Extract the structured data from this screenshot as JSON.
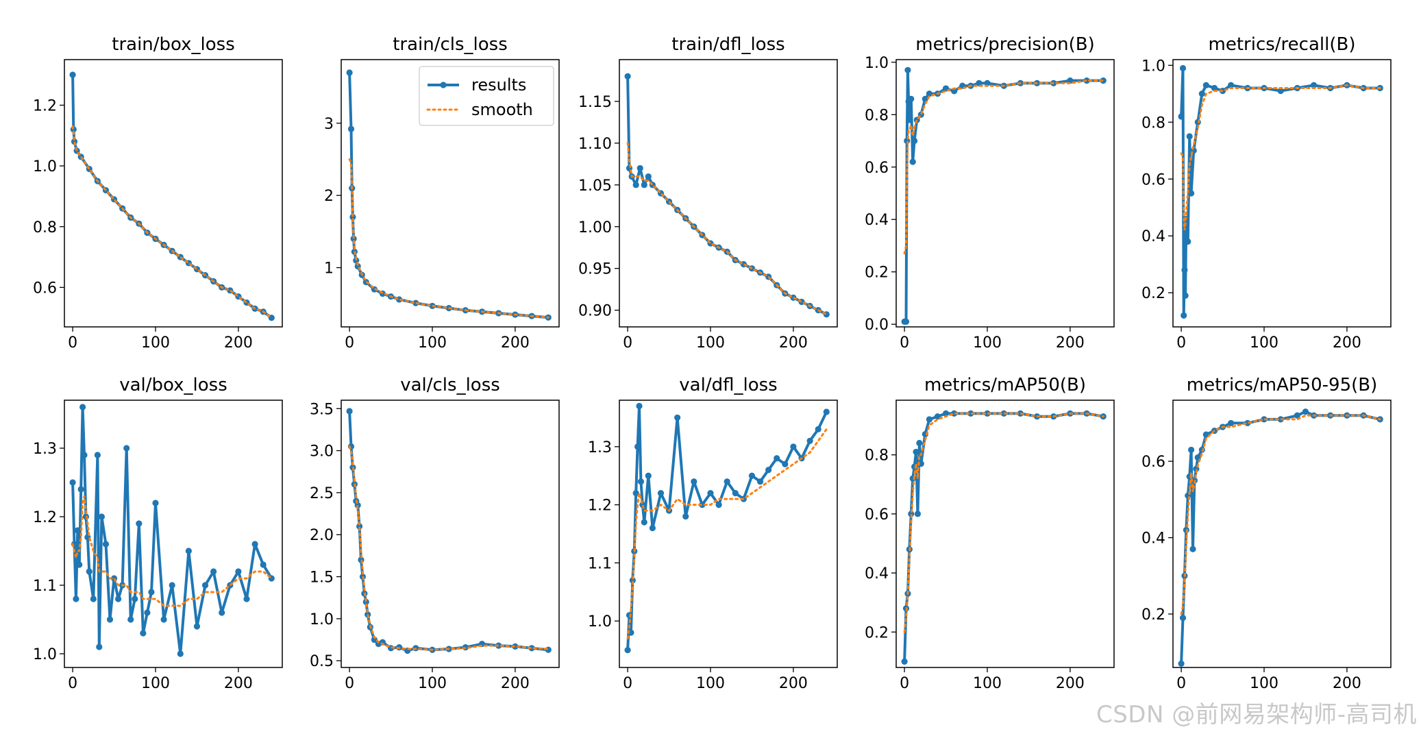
{
  "watermark": "CSDN @前网易架构师-高司机",
  "colors": {
    "results": "#1f77b4",
    "smooth": "#ff7f0e"
  },
  "legend": {
    "results": "results",
    "smooth": "smooth",
    "panel": "train/cls_loss",
    "placement": "upper-right"
  },
  "chart_data": [
    {
      "type": "line",
      "title": "train/box_loss",
      "xlim": [
        -10,
        253
      ],
      "ylim": [
        0.47,
        1.35
      ],
      "xticks": [
        0,
        100,
        200
      ],
      "yticks": [
        0.6,
        0.8,
        1.0,
        1.2
      ],
      "x": [
        0,
        1,
        2,
        5,
        10,
        20,
        30,
        40,
        50,
        60,
        70,
        80,
        90,
        100,
        110,
        120,
        130,
        140,
        150,
        160,
        170,
        180,
        190,
        200,
        210,
        220,
        230,
        240
      ],
      "series": [
        {
          "name": "results",
          "values": [
            1.3,
            1.12,
            1.08,
            1.05,
            1.03,
            0.99,
            0.95,
            0.92,
            0.89,
            0.86,
            0.83,
            0.81,
            0.78,
            0.76,
            0.74,
            0.72,
            0.7,
            0.68,
            0.66,
            0.64,
            0.62,
            0.6,
            0.59,
            0.57,
            0.55,
            0.53,
            0.52,
            0.5
          ]
        },
        {
          "name": "smooth",
          "values": [
            1.13,
            1.11,
            1.08,
            1.05,
            1.03,
            0.99,
            0.95,
            0.92,
            0.89,
            0.86,
            0.83,
            0.81,
            0.78,
            0.76,
            0.74,
            0.72,
            0.7,
            0.68,
            0.66,
            0.64,
            0.62,
            0.6,
            0.59,
            0.57,
            0.55,
            0.53,
            0.52,
            0.5
          ]
        }
      ]
    },
    {
      "type": "line",
      "title": "train/cls_loss",
      "xlim": [
        -10,
        253
      ],
      "ylim": [
        0.18,
        3.88
      ],
      "xticks": [
        0,
        100,
        200
      ],
      "yticks": [
        1,
        2,
        3
      ],
      "x": [
        0,
        2,
        3,
        4,
        5,
        6,
        8,
        10,
        15,
        20,
        30,
        40,
        50,
        60,
        80,
        100,
        120,
        140,
        160,
        180,
        200,
        220,
        240
      ],
      "series": [
        {
          "name": "results",
          "values": [
            3.7,
            2.92,
            2.1,
            1.7,
            1.4,
            1.22,
            1.1,
            1.02,
            0.9,
            0.8,
            0.7,
            0.64,
            0.6,
            0.56,
            0.51,
            0.47,
            0.44,
            0.41,
            0.39,
            0.37,
            0.35,
            0.33,
            0.31
          ]
        },
        {
          "name": "smooth",
          "values": [
            2.5,
            2.45,
            2.1,
            1.72,
            1.43,
            1.25,
            1.12,
            1.04,
            0.91,
            0.81,
            0.71,
            0.65,
            0.6,
            0.56,
            0.51,
            0.47,
            0.44,
            0.41,
            0.39,
            0.37,
            0.35,
            0.33,
            0.31
          ]
        }
      ]
    },
    {
      "type": "line",
      "title": "train/dfl_loss",
      "xlim": [
        -10,
        253
      ],
      "ylim": [
        0.88,
        1.2
      ],
      "xticks": [
        0,
        100,
        200
      ],
      "yticks": [
        0.9,
        0.95,
        1.0,
        1.05,
        1.1,
        1.15
      ],
      "x": [
        0,
        2,
        5,
        10,
        15,
        20,
        25,
        30,
        40,
        50,
        60,
        70,
        80,
        90,
        100,
        110,
        120,
        130,
        140,
        150,
        160,
        170,
        180,
        190,
        200,
        210,
        220,
        230,
        240
      ],
      "series": [
        {
          "name": "results",
          "values": [
            1.18,
            1.07,
            1.06,
            1.05,
            1.07,
            1.05,
            1.06,
            1.05,
            1.04,
            1.03,
            1.02,
            1.01,
            1.0,
            0.99,
            0.98,
            0.975,
            0.97,
            0.96,
            0.955,
            0.95,
            0.945,
            0.94,
            0.93,
            0.92,
            0.915,
            0.91,
            0.905,
            0.9,
            0.895
          ]
        },
        {
          "name": "smooth",
          "values": [
            1.1,
            1.08,
            1.06,
            1.06,
            1.06,
            1.055,
            1.055,
            1.05,
            1.04,
            1.03,
            1.02,
            1.01,
            1.0,
            0.99,
            0.98,
            0.975,
            0.97,
            0.96,
            0.955,
            0.95,
            0.945,
            0.94,
            0.93,
            0.92,
            0.915,
            0.91,
            0.905,
            0.9,
            0.895
          ]
        }
      ]
    },
    {
      "type": "line",
      "title": "metrics/precision(B)",
      "xlim": [
        -10,
        253
      ],
      "ylim": [
        -0.01,
        1.01
      ],
      "xticks": [
        0,
        100,
        200
      ],
      "yticks": [
        0.0,
        0.2,
        0.4,
        0.6,
        0.8,
        1.0
      ],
      "x": [
        0,
        2,
        3,
        4,
        5,
        6,
        8,
        10,
        12,
        15,
        20,
        25,
        30,
        40,
        50,
        60,
        70,
        80,
        90,
        100,
        120,
        140,
        160,
        180,
        200,
        220,
        240
      ],
      "series": [
        {
          "name": "results",
          "values": [
            0.01,
            0.01,
            0.7,
            0.97,
            0.85,
            0.78,
            0.86,
            0.62,
            0.7,
            0.78,
            0.8,
            0.86,
            0.88,
            0.88,
            0.9,
            0.89,
            0.91,
            0.91,
            0.92,
            0.92,
            0.91,
            0.92,
            0.92,
            0.92,
            0.93,
            0.93,
            0.93
          ]
        },
        {
          "name": "smooth",
          "values": [
            0.27,
            0.3,
            0.55,
            0.7,
            0.74,
            0.74,
            0.76,
            0.72,
            0.75,
            0.78,
            0.8,
            0.84,
            0.87,
            0.88,
            0.89,
            0.9,
            0.9,
            0.91,
            0.91,
            0.91,
            0.91,
            0.92,
            0.92,
            0.92,
            0.92,
            0.93,
            0.93
          ]
        }
      ]
    },
    {
      "type": "line",
      "title": "metrics/recall(B)",
      "xlim": [
        -10,
        253
      ],
      "ylim": [
        0.08,
        1.02
      ],
      "xticks": [
        0,
        100,
        200
      ],
      "yticks": [
        0.2,
        0.4,
        0.6,
        0.8,
        1.0
      ],
      "x": [
        0,
        2,
        3,
        4,
        5,
        6,
        8,
        10,
        12,
        15,
        20,
        25,
        30,
        40,
        50,
        60,
        80,
        100,
        120,
        140,
        160,
        180,
        200,
        220,
        240
      ],
      "series": [
        {
          "name": "results",
          "values": [
            0.82,
            0.99,
            0.12,
            0.28,
            0.19,
            0.46,
            0.38,
            0.75,
            0.55,
            0.7,
            0.8,
            0.9,
            0.93,
            0.92,
            0.91,
            0.93,
            0.92,
            0.92,
            0.91,
            0.92,
            0.93,
            0.92,
            0.93,
            0.92,
            0.92
          ]
        },
        {
          "name": "smooth",
          "values": [
            0.69,
            0.68,
            0.48,
            0.42,
            0.44,
            0.48,
            0.55,
            0.65,
            0.68,
            0.72,
            0.78,
            0.86,
            0.9,
            0.91,
            0.91,
            0.92,
            0.92,
            0.92,
            0.92,
            0.92,
            0.92,
            0.92,
            0.93,
            0.92,
            0.92
          ]
        }
      ]
    },
    {
      "type": "line",
      "title": "val/box_loss",
      "xlim": [
        -10,
        253
      ],
      "ylim": [
        0.98,
        1.37
      ],
      "xticks": [
        0,
        100,
        200
      ],
      "yticks": [
        1.0,
        1.1,
        1.2,
        1.3
      ],
      "x": [
        0,
        2,
        4,
        6,
        8,
        10,
        12,
        14,
        16,
        18,
        20,
        25,
        30,
        32,
        35,
        40,
        45,
        50,
        55,
        60,
        65,
        70,
        75,
        80,
        85,
        90,
        95,
        100,
        110,
        120,
        130,
        140,
        150,
        160,
        170,
        180,
        190,
        200,
        210,
        220,
        230,
        240
      ],
      "series": [
        {
          "name": "results",
          "values": [
            1.25,
            1.16,
            1.08,
            1.18,
            1.13,
            1.24,
            1.36,
            1.29,
            1.2,
            1.17,
            1.12,
            1.08,
            1.29,
            1.01,
            1.2,
            1.16,
            1.05,
            1.11,
            1.08,
            1.1,
            1.3,
            1.05,
            1.08,
            1.19,
            1.03,
            1.06,
            1.09,
            1.22,
            1.05,
            1.1,
            1.0,
            1.15,
            1.04,
            1.1,
            1.12,
            1.06,
            1.1,
            1.12,
            1.08,
            1.16,
            1.13,
            1.11
          ]
        },
        {
          "name": "smooth",
          "values": [
            1.16,
            1.15,
            1.14,
            1.15,
            1.15,
            1.17,
            1.22,
            1.23,
            1.21,
            1.19,
            1.17,
            1.15,
            1.14,
            1.12,
            1.12,
            1.12,
            1.11,
            1.11,
            1.1,
            1.1,
            1.1,
            1.09,
            1.09,
            1.09,
            1.08,
            1.08,
            1.08,
            1.08,
            1.07,
            1.07,
            1.07,
            1.08,
            1.08,
            1.09,
            1.09,
            1.09,
            1.1,
            1.11,
            1.11,
            1.12,
            1.12,
            1.11
          ]
        }
      ]
    },
    {
      "type": "line",
      "title": "val/cls_loss",
      "xlim": [
        -10,
        253
      ],
      "ylim": [
        0.42,
        3.6
      ],
      "xticks": [
        0,
        100,
        200
      ],
      "yticks": [
        0.5,
        1.0,
        1.5,
        2.0,
        2.5,
        3.0,
        3.5
      ],
      "x": [
        0,
        2,
        4,
        6,
        8,
        10,
        12,
        14,
        16,
        18,
        20,
        22,
        25,
        30,
        35,
        40,
        50,
        60,
        70,
        80,
        100,
        120,
        140,
        160,
        180,
        200,
        220,
        240
      ],
      "series": [
        {
          "name": "results",
          "values": [
            3.47,
            3.05,
            2.8,
            2.6,
            2.4,
            2.35,
            2.1,
            1.7,
            1.5,
            1.3,
            1.2,
            1.05,
            0.9,
            0.75,
            0.7,
            0.72,
            0.65,
            0.66,
            0.62,
            0.65,
            0.63,
            0.64,
            0.66,
            0.7,
            0.68,
            0.67,
            0.65,
            0.63
          ]
        },
        {
          "name": "smooth",
          "values": [
            3.05,
            3.0,
            2.85,
            2.65,
            2.45,
            2.3,
            2.1,
            1.8,
            1.55,
            1.35,
            1.2,
            1.05,
            0.92,
            0.78,
            0.72,
            0.7,
            0.66,
            0.65,
            0.64,
            0.64,
            0.63,
            0.64,
            0.65,
            0.68,
            0.68,
            0.67,
            0.65,
            0.64
          ]
        }
      ]
    },
    {
      "type": "line",
      "title": "val/dfl_loss",
      "xlim": [
        -10,
        253
      ],
      "ylim": [
        0.92,
        1.38
      ],
      "xticks": [
        0,
        100,
        200
      ],
      "yticks": [
        1.0,
        1.1,
        1.2,
        1.3
      ],
      "x": [
        0,
        2,
        4,
        6,
        8,
        10,
        12,
        14,
        16,
        18,
        20,
        25,
        30,
        40,
        50,
        60,
        70,
        80,
        90,
        100,
        110,
        120,
        130,
        140,
        150,
        160,
        170,
        180,
        190,
        200,
        210,
        220,
        230,
        240
      ],
      "series": [
        {
          "name": "results",
          "values": [
            0.95,
            1.01,
            0.98,
            1.07,
            1.12,
            1.22,
            1.3,
            1.37,
            1.24,
            1.2,
            1.17,
            1.25,
            1.16,
            1.22,
            1.19,
            1.35,
            1.18,
            1.24,
            1.2,
            1.22,
            1.2,
            1.24,
            1.22,
            1.21,
            1.25,
            1.24,
            1.26,
            1.28,
            1.27,
            1.3,
            1.28,
            1.31,
            1.33,
            1.36
          ]
        },
        {
          "name": "smooth",
          "values": [
            0.97,
            0.99,
            1.02,
            1.06,
            1.11,
            1.17,
            1.2,
            1.22,
            1.21,
            1.2,
            1.19,
            1.19,
            1.19,
            1.2,
            1.19,
            1.21,
            1.2,
            1.2,
            1.2,
            1.2,
            1.21,
            1.21,
            1.21,
            1.21,
            1.22,
            1.23,
            1.24,
            1.25,
            1.26,
            1.27,
            1.28,
            1.29,
            1.31,
            1.33
          ]
        }
      ]
    },
    {
      "type": "line",
      "title": "metrics/mAP50(B)",
      "xlim": [
        -10,
        253
      ],
      "ylim": [
        0.08,
        0.985
      ],
      "xticks": [
        0,
        100,
        200
      ],
      "yticks": [
        0.2,
        0.4,
        0.6,
        0.8
      ],
      "x": [
        0,
        2,
        4,
        6,
        8,
        10,
        12,
        14,
        16,
        18,
        20,
        25,
        30,
        40,
        50,
        60,
        80,
        100,
        120,
        140,
        160,
        180,
        200,
        220,
        240
      ],
      "series": [
        {
          "name": "results",
          "values": [
            0.1,
            0.28,
            0.33,
            0.48,
            0.6,
            0.72,
            0.76,
            0.81,
            0.6,
            0.84,
            0.77,
            0.87,
            0.92,
            0.93,
            0.94,
            0.94,
            0.94,
            0.94,
            0.94,
            0.94,
            0.93,
            0.93,
            0.94,
            0.94,
            0.93
          ]
        },
        {
          "name": "smooth",
          "values": [
            0.2,
            0.25,
            0.33,
            0.45,
            0.57,
            0.67,
            0.73,
            0.77,
            0.72,
            0.8,
            0.8,
            0.85,
            0.9,
            0.92,
            0.93,
            0.94,
            0.94,
            0.94,
            0.94,
            0.94,
            0.93,
            0.93,
            0.94,
            0.94,
            0.93
          ]
        }
      ]
    },
    {
      "type": "line",
      "title": "metrics/mAP50-95(B)",
      "xlim": [
        -10,
        253
      ],
      "ylim": [
        0.06,
        0.76
      ],
      "xticks": [
        0,
        100,
        200
      ],
      "yticks": [
        0.2,
        0.4,
        0.6
      ],
      "x": [
        0,
        2,
        4,
        6,
        8,
        10,
        12,
        14,
        16,
        18,
        20,
        25,
        30,
        40,
        50,
        60,
        80,
        100,
        120,
        140,
        150,
        160,
        180,
        200,
        220,
        240
      ],
      "series": [
        {
          "name": "results",
          "values": [
            0.07,
            0.19,
            0.3,
            0.42,
            0.51,
            0.56,
            0.63,
            0.37,
            0.55,
            0.58,
            0.61,
            0.63,
            0.67,
            0.68,
            0.69,
            0.7,
            0.7,
            0.71,
            0.71,
            0.72,
            0.73,
            0.72,
            0.72,
            0.72,
            0.72,
            0.71
          ]
        },
        {
          "name": "smooth",
          "values": [
            0.2,
            0.22,
            0.28,
            0.38,
            0.46,
            0.52,
            0.57,
            0.52,
            0.54,
            0.57,
            0.59,
            0.62,
            0.66,
            0.68,
            0.69,
            0.69,
            0.7,
            0.71,
            0.71,
            0.71,
            0.72,
            0.72,
            0.72,
            0.72,
            0.72,
            0.71
          ]
        }
      ]
    }
  ]
}
